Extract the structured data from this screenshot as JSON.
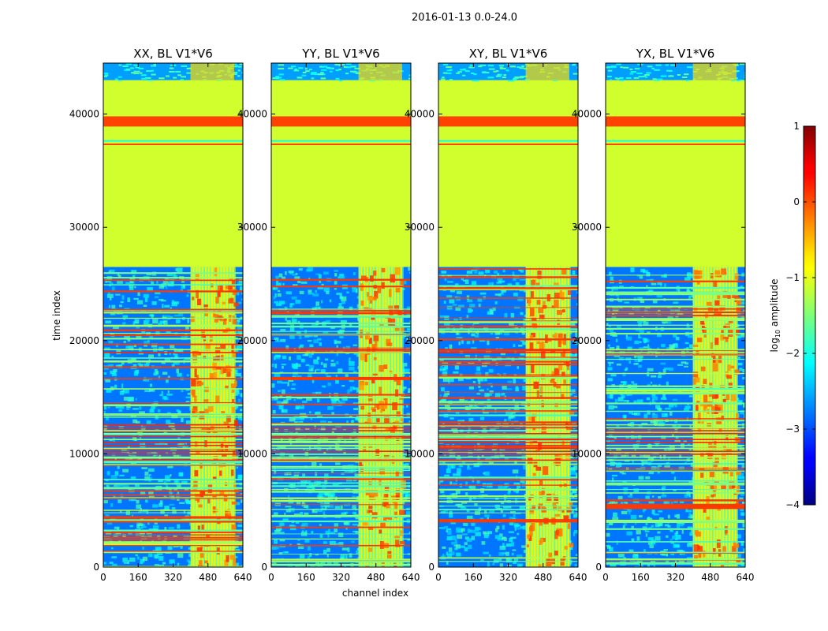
{
  "chart_data": {
    "type": "heatmap",
    "title": "2016-01-13 0.0-24.0",
    "xlabel": "channel index",
    "ylabel": "time index",
    "xlim": [
      0,
      640
    ],
    "ylim": [
      0,
      44500
    ],
    "xticks": [
      "0",
      "160",
      "320",
      "480",
      "640"
    ],
    "yticks": [
      "0",
      "10000",
      "20000",
      "30000",
      "40000"
    ],
    "panels": [
      {
        "title": "XX, BL V1*V6"
      },
      {
        "title": "YY, BL V1*V6"
      },
      {
        "title": "XY, BL V1*V6"
      },
      {
        "title": "YX, BL V1*V6"
      }
    ],
    "colorbar": {
      "label": "log10 amplitude",
      "label_main": "log",
      "label_sub": "10",
      "label_rest": " amplitude",
      "range": [
        -4,
        1
      ],
      "ticks": [
        "1",
        "0",
        "−1",
        "−2",
        "−3",
        "−4"
      ],
      "colormap": "jet"
    },
    "features": {
      "flagged_time_range": [
        26500,
        43000
      ],
      "flagged_value": -1.1,
      "saturated_band": [
        38900,
        39800
      ],
      "thin_bright_line": 37400,
      "noisy_top_range": [
        43000,
        44500
      ],
      "high_amplitude_channels": [
        400,
        600
      ]
    }
  }
}
